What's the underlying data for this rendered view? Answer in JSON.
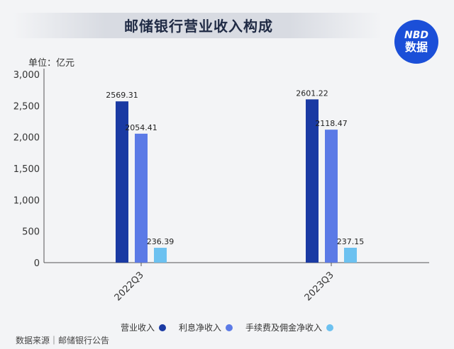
{
  "title": "邮储银行营业收入构成",
  "logo": {
    "line1": "NBD",
    "line2": "数据"
  },
  "unit_label": "单位：亿元",
  "source": "数据来源｜邮储银行公告",
  "colors": {
    "营业收入": "#1a3aa3",
    "利息净收入": "#5b7ae6",
    "手续费及佣金净收入": "#6cc1f0"
  },
  "chart_data": {
    "type": "bar",
    "categories": [
      "2022Q3",
      "2023Q3"
    ],
    "series": [
      {
        "name": "营业收入",
        "values": [
          2569.31,
          2601.22
        ]
      },
      {
        "name": "利息净收入",
        "values": [
          2054.41,
          2118.47
        ]
      },
      {
        "name": "手续费及佣金净收入",
        "values": [
          236.39,
          237.15
        ]
      }
    ],
    "value_labels": [
      [
        "2569.31",
        "2054.41",
        "236.39"
      ],
      [
        "2601.22",
        "2118.47",
        "237.15"
      ]
    ],
    "yticks": [
      "0",
      "500",
      "1,000",
      "1,500",
      "2,000",
      "2,500",
      "3,000"
    ],
    "ylim": [
      0,
      3000
    ],
    "legend_position": "bottom",
    "grid": false
  }
}
